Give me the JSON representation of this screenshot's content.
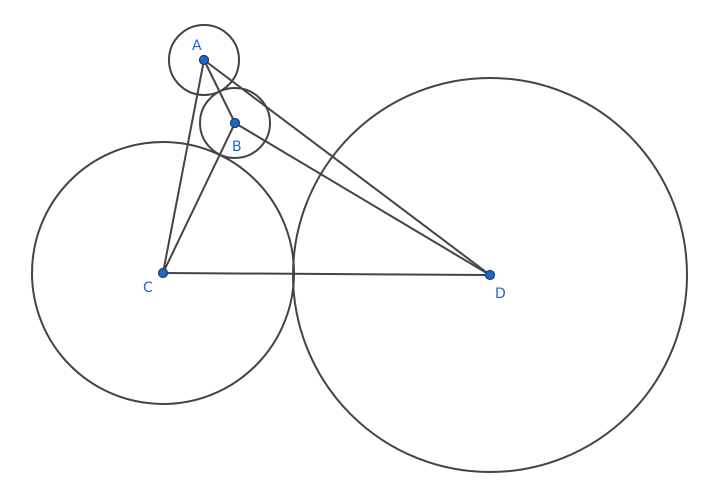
{
  "colors": {
    "stroke": "#444444",
    "point_fill": "#1f66c9",
    "point_outline": "#1a3e7a",
    "label": "#1f66c9"
  },
  "points": [
    {
      "id": "A",
      "label": "A"
    },
    {
      "id": "B",
      "label": "B"
    },
    {
      "id": "C",
      "label": "C"
    },
    {
      "id": "D",
      "label": "D"
    }
  ],
  "segments": [
    {
      "from": "A",
      "to": "B"
    },
    {
      "from": "A",
      "to": "C"
    },
    {
      "from": "A",
      "to": "D"
    },
    {
      "from": "B",
      "to": "C"
    },
    {
      "from": "B",
      "to": "D"
    },
    {
      "from": "C",
      "to": "D"
    }
  ],
  "circles": [
    {
      "center": "A"
    },
    {
      "center": "B"
    },
    {
      "center": "C"
    },
    {
      "center": "D"
    }
  ]
}
